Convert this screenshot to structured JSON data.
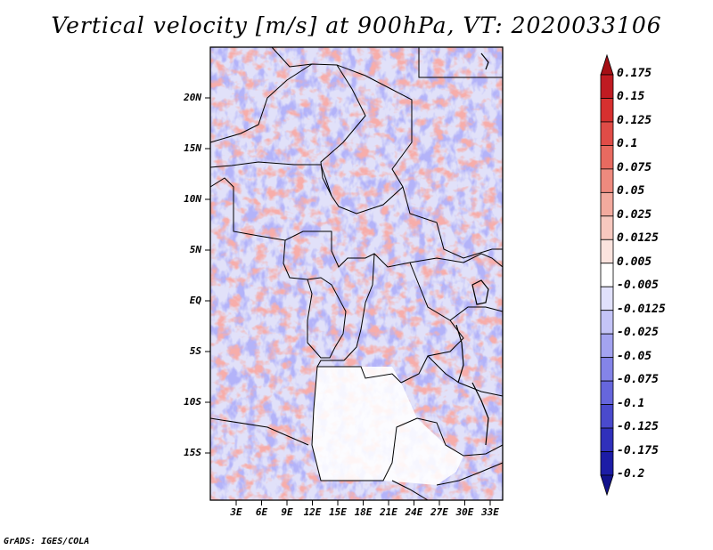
{
  "title": "Vertical velocity [m/s] at 900hPa, VT: 2020033106",
  "credit": "GrADS: IGES/COLA",
  "lat_labels": [
    "20N",
    "15N",
    "10N",
    "5N",
    "EQ",
    "5S",
    "10S",
    "15S"
  ],
  "lon_labels": [
    "3E",
    "6E",
    "9E",
    "12E",
    "15E",
    "18E",
    "21E",
    "24E",
    "27E",
    "30E",
    "33E"
  ],
  "colorbar": {
    "labels": [
      "0.175",
      "0.15",
      "0.125",
      "0.1",
      "0.075",
      "0.05",
      "0.025",
      "0.0125",
      "0.005",
      "-0.005",
      "-0.0125",
      "-0.025",
      "-0.05",
      "-0.075",
      "-0.1",
      "-0.125",
      "-0.175",
      "-0.2"
    ],
    "colors": [
      "#a50f15",
      "#c01b22",
      "#d7302f",
      "#e04c47",
      "#e86a60",
      "#ee8a7e",
      "#f3aa9e",
      "#f7c8bf",
      "#fbe3de",
      "#ffffff",
      "#e1e1fb",
      "#c4c4f7",
      "#a3a3f0",
      "#8484e8",
      "#6666dc",
      "#4a4acd",
      "#3030bb",
      "#1c1ca6",
      "#12128c"
    ]
  }
}
